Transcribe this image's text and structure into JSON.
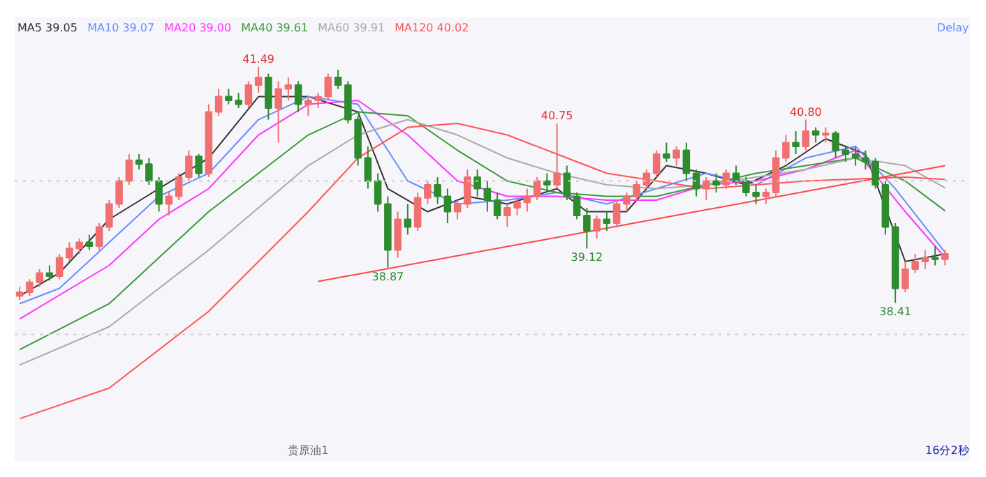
{
  "chart_data": {
    "type": "candlestick",
    "categories": [
      null,
      null,
      null,
      null,
      null,
      null,
      null,
      null,
      null,
      null,
      null,
      null,
      null,
      null,
      null,
      null,
      null,
      null,
      null,
      null,
      null,
      null,
      null,
      null,
      null,
      null,
      null,
      null,
      null,
      null,
      null,
      null,
      null,
      null,
      null,
      null,
      null,
      null,
      null,
      null,
      null,
      null,
      null,
      null,
      null,
      null,
      null,
      null,
      null,
      null,
      null,
      null,
      null,
      null,
      null,
      null,
      null,
      null,
      null,
      null,
      null,
      null,
      null,
      null,
      null,
      null,
      null,
      null,
      null,
      null,
      null,
      null,
      null,
      null,
      null,
      null,
      null,
      null,
      null,
      null,
      null,
      null,
      null,
      null,
      null,
      null,
      null,
      null,
      null,
      null,
      null,
      null,
      null,
      null
    ],
    "ohlc": [
      [
        38.5,
        38.62,
        38.45,
        38.55
      ],
      [
        38.55,
        38.72,
        38.5,
        38.68
      ],
      [
        38.68,
        38.85,
        38.62,
        38.8
      ],
      [
        38.8,
        38.9,
        38.7,
        38.76
      ],
      [
        38.76,
        39.05,
        38.72,
        39.0
      ],
      [
        39.0,
        39.2,
        38.95,
        39.12
      ],
      [
        39.12,
        39.25,
        39.05,
        39.2
      ],
      [
        39.2,
        39.3,
        39.1,
        39.15
      ],
      [
        39.15,
        39.45,
        39.1,
        39.4
      ],
      [
        39.4,
        39.75,
        39.35,
        39.7
      ],
      [
        39.7,
        40.05,
        39.65,
        40.0
      ],
      [
        40.0,
        40.35,
        39.95,
        40.27
      ],
      [
        40.27,
        40.35,
        40.15,
        40.22
      ],
      [
        40.22,
        40.3,
        39.95,
        40.0
      ],
      [
        40.0,
        40.05,
        39.6,
        39.7
      ],
      [
        39.7,
        39.85,
        39.55,
        39.8
      ],
      [
        39.8,
        40.1,
        39.75,
        40.05
      ],
      [
        40.05,
        40.4,
        40.0,
        40.32
      ],
      [
        40.32,
        40.35,
        40.05,
        40.1
      ],
      [
        40.1,
        41.0,
        40.05,
        40.9
      ],
      [
        40.9,
        41.2,
        40.85,
        41.1
      ],
      [
        41.1,
        41.2,
        41.0,
        41.05
      ],
      [
        41.05,
        41.15,
        40.95,
        41.0
      ],
      [
        41.0,
        41.3,
        40.95,
        41.25
      ],
      [
        41.25,
        41.49,
        41.15,
        41.35
      ],
      [
        41.35,
        41.4,
        40.8,
        40.95
      ],
      [
        40.95,
        41.3,
        40.5,
        41.2
      ],
      [
        41.2,
        41.35,
        41.05,
        41.25
      ],
      [
        41.25,
        41.3,
        40.9,
        41.0
      ],
      [
        41.0,
        41.1,
        40.85,
        41.05
      ],
      [
        41.05,
        41.15,
        40.95,
        41.1
      ],
      [
        41.1,
        41.4,
        41.05,
        41.35
      ],
      [
        41.35,
        41.45,
        41.2,
        41.25
      ],
      [
        41.25,
        41.3,
        40.75,
        40.8
      ],
      [
        40.8,
        40.85,
        40.2,
        40.3
      ],
      [
        40.3,
        40.45,
        39.9,
        40.0
      ],
      [
        40.0,
        40.1,
        39.6,
        39.7
      ],
      [
        39.7,
        39.8,
        38.87,
        39.1
      ],
      [
        39.1,
        39.6,
        39.0,
        39.5
      ],
      [
        39.5,
        39.7,
        39.3,
        39.4
      ],
      [
        39.4,
        39.85,
        39.35,
        39.78
      ],
      [
        39.78,
        40.0,
        39.7,
        39.95
      ],
      [
        39.95,
        40.05,
        39.7,
        39.8
      ],
      [
        39.8,
        39.9,
        39.45,
        39.6
      ],
      [
        39.6,
        39.75,
        39.5,
        39.7
      ],
      [
        39.7,
        40.15,
        39.65,
        40.05
      ],
      [
        40.05,
        40.15,
        39.8,
        39.9
      ],
      [
        39.9,
        40.0,
        39.6,
        39.75
      ],
      [
        39.75,
        39.85,
        39.5,
        39.55
      ],
      [
        39.55,
        39.7,
        39.4,
        39.65
      ],
      [
        39.65,
        39.8,
        39.55,
        39.72
      ],
      [
        39.72,
        39.9,
        39.6,
        39.8
      ],
      [
        39.8,
        40.05,
        39.75,
        40.0
      ],
      [
        40.0,
        40.1,
        39.85,
        39.95
      ],
      [
        39.95,
        40.75,
        39.9,
        40.1
      ],
      [
        40.1,
        40.2,
        39.75,
        39.8
      ],
      [
        39.8,
        39.85,
        39.5,
        39.55
      ],
      [
        39.55,
        39.65,
        39.12,
        39.35
      ],
      [
        39.35,
        39.55,
        39.25,
        39.5
      ],
      [
        39.5,
        39.6,
        39.35,
        39.45
      ],
      [
        39.45,
        39.75,
        39.4,
        39.7
      ],
      [
        39.7,
        39.85,
        39.6,
        39.8
      ],
      [
        39.8,
        40.0,
        39.75,
        39.95
      ],
      [
        39.95,
        40.15,
        39.9,
        40.1
      ],
      [
        40.1,
        40.4,
        40.05,
        40.35
      ],
      [
        40.35,
        40.5,
        40.25,
        40.3
      ],
      [
        40.3,
        40.45,
        40.2,
        40.4
      ],
      [
        40.4,
        40.5,
        40.0,
        40.1
      ],
      [
        40.1,
        40.15,
        39.8,
        39.9
      ],
      [
        39.9,
        40.05,
        39.75,
        40.0
      ],
      [
        40.0,
        40.1,
        39.85,
        39.95
      ],
      [
        39.95,
        40.15,
        39.9,
        40.1
      ],
      [
        40.1,
        40.2,
        39.95,
        40.0
      ],
      [
        40.0,
        40.05,
        39.8,
        39.85
      ],
      [
        39.85,
        39.95,
        39.7,
        39.8
      ],
      [
        39.8,
        39.9,
        39.7,
        39.85
      ],
      [
        39.85,
        40.4,
        39.8,
        40.3
      ],
      [
        40.3,
        40.6,
        40.25,
        40.5
      ],
      [
        40.5,
        40.65,
        40.35,
        40.45
      ],
      [
        40.45,
        40.8,
        40.4,
        40.65
      ],
      [
        40.65,
        40.7,
        40.5,
        40.6
      ],
      [
        40.6,
        40.7,
        40.5,
        40.62
      ],
      [
        40.62,
        40.65,
        40.3,
        40.4
      ],
      [
        40.4,
        40.45,
        40.25,
        40.35
      ],
      [
        40.35,
        40.45,
        40.2,
        40.3
      ],
      [
        40.3,
        40.4,
        40.15,
        40.25
      ],
      [
        40.25,
        40.3,
        39.9,
        39.95
      ],
      [
        39.95,
        40.0,
        39.3,
        39.4
      ],
      [
        39.4,
        39.45,
        38.41,
        38.6
      ],
      [
        38.6,
        38.95,
        38.55,
        38.85
      ],
      [
        38.85,
        39.05,
        38.8,
        38.95
      ],
      [
        38.95,
        39.1,
        38.85,
        39.0
      ],
      [
        39.0,
        39.15,
        38.9,
        38.98
      ],
      [
        38.98,
        39.1,
        38.9,
        39.05
      ]
    ],
    "series": [
      {
        "name": "MA5 39.05",
        "color": "#333333",
        "type": "line",
        "values": [
          38.5,
          null,
          null,
          null,
          38.8,
          null,
          null,
          null,
          null,
          39.5,
          null,
          null,
          null,
          null,
          39.9,
          null,
          null,
          null,
          null,
          40.3,
          null,
          null,
          null,
          null,
          41.1,
          null,
          null,
          null,
          null,
          41.1,
          null,
          null,
          null,
          null,
          40.9,
          null,
          null,
          39.9,
          null,
          null,
          null,
          39.6,
          null,
          null,
          null,
          39.8,
          null,
          null,
          null,
          39.7,
          null,
          null,
          null,
          null,
          39.9,
          null,
          null,
          39.6,
          null,
          null,
          null,
          39.6,
          null,
          null,
          null,
          40.2,
          null,
          null,
          null,
          40.1,
          null,
          null,
          null,
          39.95,
          null,
          null,
          null,
          40.2,
          null,
          null,
          null,
          40.55,
          null,
          null,
          null,
          40.35,
          null,
          null,
          null,
          38.95,
          null,
          null,
          null,
          39.05
        ]
      },
      {
        "name": "MA10 39.07",
        "color": "#6b8cff",
        "type": "line",
        "values": [
          38.4,
          null,
          null,
          null,
          38.6,
          null,
          null,
          null,
          null,
          39.2,
          null,
          null,
          null,
          null,
          39.8,
          null,
          null,
          null,
          null,
          40.1,
          null,
          null,
          null,
          null,
          40.8,
          null,
          null,
          null,
          null,
          41.1,
          null,
          null,
          null,
          null,
          41.0,
          null,
          null,
          null,
          null,
          40.0,
          null,
          null,
          null,
          null,
          39.7,
          null,
          null,
          null,
          null,
          39.75,
          null,
          null,
          null,
          null,
          39.85,
          null,
          null,
          null,
          null,
          39.7,
          null,
          null,
          null,
          null,
          39.9,
          null,
          null,
          null,
          null,
          40.1,
          null,
          null,
          null,
          null,
          39.95,
          null,
          null,
          null,
          null,
          40.3,
          null,
          null,
          null,
          null,
          40.45,
          null,
          null,
          null,
          39.9,
          null,
          null,
          null,
          null,
          39.07
        ]
      },
      {
        "name": "MA20 39.00",
        "color": "#ff33ff",
        "type": "line",
        "values": [
          38.2,
          null,
          null,
          null,
          null,
          null,
          null,
          null,
          null,
          38.9,
          null,
          null,
          null,
          null,
          39.5,
          null,
          null,
          null,
          null,
          39.9,
          null,
          null,
          null,
          null,
          40.6,
          null,
          null,
          null,
          null,
          41.0,
          null,
          null,
          null,
          null,
          41.05,
          null,
          null,
          null,
          null,
          40.6,
          null,
          null,
          null,
          null,
          40.0,
          null,
          null,
          null,
          null,
          39.8,
          null,
          null,
          null,
          null,
          39.8,
          null,
          null,
          null,
          null,
          39.75,
          null,
          null,
          null,
          null,
          39.75,
          null,
          null,
          null,
          null,
          39.95,
          null,
          null,
          null,
          null,
          40.0,
          null,
          null,
          null,
          null,
          40.15,
          null,
          null,
          null,
          null,
          40.4,
          null,
          null,
          null,
          null,
          39.6,
          null,
          null,
          null,
          39.0
        ]
      },
      {
        "name": "MA40 39.61",
        "color": "#3a9a3a",
        "type": "line",
        "values": [
          37.8,
          null,
          null,
          null,
          null,
          null,
          null,
          null,
          null,
          38.4,
          null,
          null,
          null,
          null,
          null,
          null,
          null,
          null,
          null,
          39.6,
          null,
          null,
          null,
          null,
          40.1,
          null,
          null,
          null,
          null,
          40.6,
          null,
          null,
          null,
          null,
          40.9,
          null,
          null,
          null,
          null,
          40.85,
          null,
          null,
          null,
          null,
          40.4,
          null,
          null,
          null,
          null,
          40.0,
          null,
          null,
          null,
          null,
          39.85,
          null,
          null,
          null,
          null,
          39.8,
          null,
          null,
          null,
          null,
          39.8,
          null,
          null,
          null,
          null,
          39.95,
          null,
          null,
          null,
          null,
          40.1,
          null,
          null,
          null,
          null,
          40.2,
          null,
          null,
          null,
          null,
          40.3,
          null,
          null,
          null,
          null,
          40.0,
          null,
          null,
          null,
          39.61
        ]
      },
      {
        "name": "MA60 39.91",
        "color": "#aaaaaa",
        "type": "line",
        "values": [
          37.6,
          null,
          null,
          null,
          null,
          null,
          null,
          null,
          null,
          38.1,
          null,
          null,
          null,
          null,
          null,
          null,
          null,
          null,
          null,
          39.1,
          null,
          null,
          null,
          null,
          null,
          null,
          null,
          null,
          null,
          40.2,
          null,
          null,
          null,
          null,
          40.6,
          null,
          null,
          null,
          null,
          40.8,
          null,
          null,
          null,
          null,
          40.6,
          null,
          null,
          null,
          null,
          40.3,
          null,
          null,
          null,
          null,
          40.1,
          null,
          null,
          null,
          null,
          39.95,
          null,
          null,
          null,
          null,
          39.9,
          null,
          null,
          null,
          null,
          39.95,
          null,
          null,
          null,
          null,
          40.05,
          null,
          null,
          null,
          null,
          40.15,
          null,
          null,
          null,
          null,
          40.3,
          null,
          null,
          null,
          null,
          40.2,
          null,
          null,
          null,
          39.91
        ]
      },
      {
        "name": "MA120 40.02",
        "color": "#ff5555",
        "type": "line",
        "values": [
          36.9,
          null,
          null,
          null,
          null,
          null,
          null,
          null,
          null,
          37.3,
          null,
          null,
          null,
          null,
          null,
          null,
          null,
          null,
          null,
          38.3,
          null,
          null,
          null,
          null,
          null,
          null,
          null,
          null,
          null,
          39.6,
          null,
          null,
          null,
          null,
          40.3,
          null,
          null,
          null,
          null,
          40.7,
          null,
          null,
          null,
          null,
          40.75,
          null,
          null,
          null,
          null,
          40.6,
          null,
          null,
          null,
          null,
          40.35,
          null,
          null,
          null,
          null,
          40.1,
          null,
          null,
          null,
          null,
          null,
          null,
          null,
          null,
          null,
          39.9,
          null,
          null,
          null,
          null,
          null,
          null,
          null,
          null,
          null,
          40.0,
          null,
          null,
          null,
          null,
          null,
          null,
          null,
          null,
          null,
          40.05,
          null,
          null,
          null,
          40.02
        ]
      },
      {
        "color": "#ff4444",
        "type": "line",
        "values": [
          null,
          null,
          null,
          null,
          null,
          null,
          null,
          null,
          null,
          null,
          null,
          null,
          null,
          null,
          null,
          null,
          null,
          null,
          null,
          null,
          null,
          null,
          null,
          null,
          null,
          null,
          null,
          null,
          null,
          null,
          38.69,
          null,
          null,
          null,
          null,
          null,
          null,
          null,
          null,
          null,
          null,
          null,
          null,
          null,
          null,
          null,
          null,
          null,
          null,
          null,
          null,
          null,
          null,
          null,
          null,
          null,
          null,
          null,
          null,
          null,
          null,
          null,
          null,
          null,
          null,
          null,
          null,
          null,
          null,
          null,
          null,
          null,
          null,
          null,
          null,
          null,
          null,
          null,
          null,
          null,
          null,
          null,
          null,
          null,
          null,
          null,
          null,
          null,
          null,
          null,
          null,
          null,
          null,
          40.2
        ]
      }
    ],
    "ref_lines": [
      {
        "axis": "y",
        "value": 40.0,
        "color": "#cccccc",
        "line_style": "dotted"
      },
      {
        "axis": "y",
        "value": 38.0,
        "color": "#cccccc",
        "line_style": "dotted"
      }
    ],
    "annotations": [
      "41.49",
      "40.75",
      "40.80",
      "38.87",
      "39.12",
      "38.41",
      "Delay",
      "16分2秒",
      "贵原油1"
    ],
    "legend": "top left",
    "tick_labels": false,
    "grid": false
  }
}
